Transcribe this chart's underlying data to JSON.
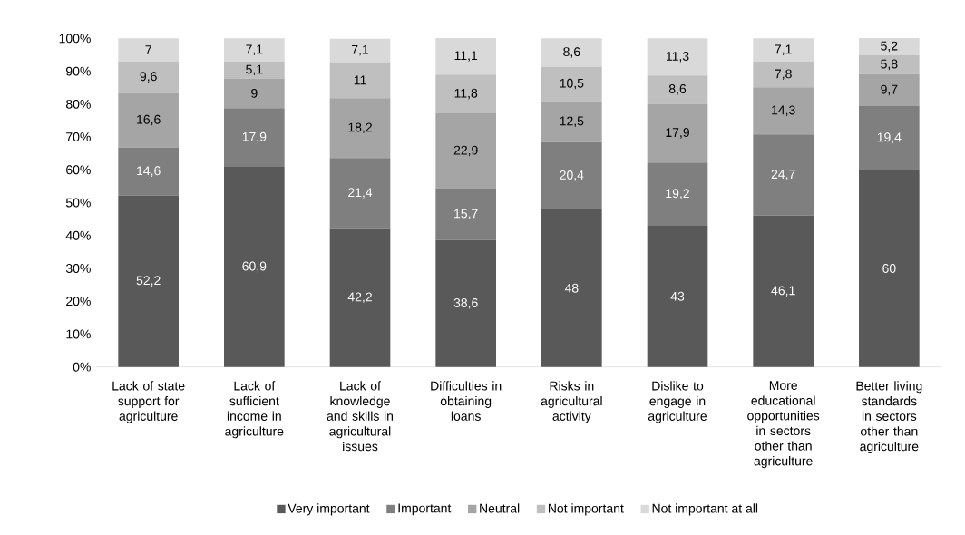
{
  "chart_data": {
    "type": "bar",
    "stacked": true,
    "categories": [
      "Lack of state support for agriculture",
      "Lack of sufficient income in agriculture",
      "Lack of knowledge and skills in agricultural issues",
      "Difficulties in obtaining loans",
      "Risks in agricultural activity",
      "Dislike to engage in agriculture",
      "More educational opportunities in sectors other than agriculture",
      "Better living standards in sectors other than agriculture"
    ],
    "series": [
      {
        "name": "Very important",
        "color": "#595959",
        "values": [
          52.2,
          60.9,
          42.2,
          38.6,
          48,
          43,
          46.1,
          60
        ],
        "value_labels": [
          "52,2",
          "60,9",
          "42,2",
          "38,6",
          "48",
          "43",
          "46,1",
          "60"
        ]
      },
      {
        "name": "Important",
        "color": "#7f7f7f",
        "values": [
          14.6,
          17.9,
          21.4,
          15.7,
          20.4,
          19.2,
          24.7,
          19.4
        ],
        "value_labels": [
          "14,6",
          "17,9",
          "21,4",
          "15,7",
          "20,4",
          "19,2",
          "24,7",
          "19,4"
        ]
      },
      {
        "name": "Neutral",
        "color": "#a5a5a5",
        "values": [
          16.6,
          9,
          18.2,
          22.9,
          12.5,
          17.9,
          14.3,
          9.7
        ],
        "value_labels": [
          "16,6",
          "9",
          "18,2",
          "22,9",
          "12,5",
          "17,9",
          "14,3",
          "9,7"
        ]
      },
      {
        "name": "Not important",
        "color": "#bfbfbf",
        "values": [
          9.6,
          5.1,
          11,
          11.8,
          10.5,
          8.6,
          7.8,
          5.8
        ],
        "value_labels": [
          "9,6",
          "5,1",
          "11",
          "11,8",
          "10,5",
          "8,6",
          "7,8",
          "5,8"
        ]
      },
      {
        "name": "Not important at all",
        "color": "#d9d9d9",
        "values": [
          7,
          7.1,
          7.1,
          11.1,
          8.6,
          11.3,
          7.1,
          5.2
        ],
        "value_labels": [
          "7",
          "7,1",
          "7,1",
          "11,1",
          "8,6",
          "11,3",
          "7,1",
          "5,2"
        ]
      }
    ],
    "ylim": [
      0,
      100.1
    ],
    "yticks": [
      {
        "value": 0,
        "label": "0%"
      },
      {
        "value": 10,
        "label": "10%"
      },
      {
        "value": 20,
        "label": "20%"
      },
      {
        "value": 30,
        "label": "30%"
      },
      {
        "value": 40,
        "label": "40%"
      },
      {
        "value": 50,
        "label": "50%"
      },
      {
        "value": 60,
        "label": "60%"
      },
      {
        "value": 70,
        "label": "70%"
      },
      {
        "value": 80,
        "label": "80%"
      },
      {
        "value": 90,
        "label": "90%"
      },
      {
        "value": 100,
        "label": "100%"
      }
    ],
    "legend": "bottom"
  }
}
